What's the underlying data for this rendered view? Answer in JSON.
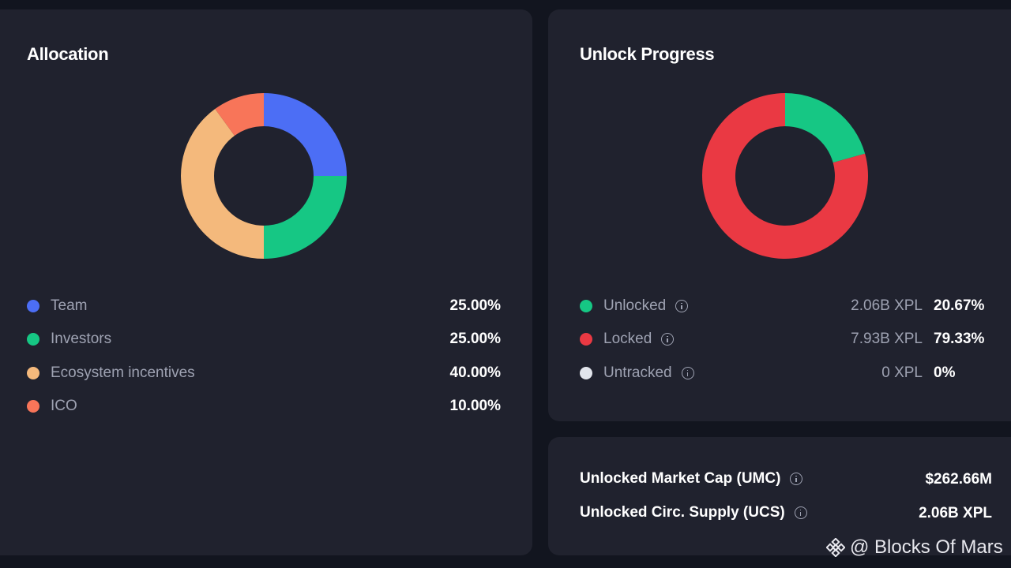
{
  "allocation": {
    "title": "Allocation",
    "items": [
      {
        "label": "Team",
        "percent": "25.00%",
        "value": 25,
        "color": "#4c6ef5"
      },
      {
        "label": "Investors",
        "percent": "25.00%",
        "value": 25,
        "color": "#16c784"
      },
      {
        "label": "Ecosystem incentives",
        "percent": "40.00%",
        "value": 40,
        "color": "#f4b97c"
      },
      {
        "label": "ICO",
        "percent": "10.00%",
        "value": 10,
        "color": "#f87559"
      }
    ]
  },
  "unlock": {
    "title": "Unlock Progress",
    "items": [
      {
        "label": "Unlocked",
        "amount": "2.06B XPL",
        "percent": "20.67%",
        "value": 20.67,
        "color": "#16c784",
        "icon": "info-icon"
      },
      {
        "label": "Locked",
        "amount": "7.93B XPL",
        "percent": "79.33%",
        "value": 79.33,
        "color": "#ea3943",
        "icon": "info-icon"
      },
      {
        "label": "Untracked",
        "amount": "0 XPL",
        "percent": "0%",
        "value": 0,
        "color": "#e2e5ec",
        "icon": "info-icon"
      }
    ]
  },
  "summary": {
    "umc_label": "Unlocked Market Cap (UMC)",
    "umc_value": "$262.66M",
    "ucs_label": "Unlocked Circ. Supply (UCS)",
    "ucs_value": "2.06B XPL"
  },
  "watermark": {
    "text": "@ Blocks Of Mars",
    "icon": "binance-logo-icon"
  },
  "colors": {
    "background": "#12151f",
    "card": "#20222e",
    "muted_text": "#9ea2b2"
  }
}
